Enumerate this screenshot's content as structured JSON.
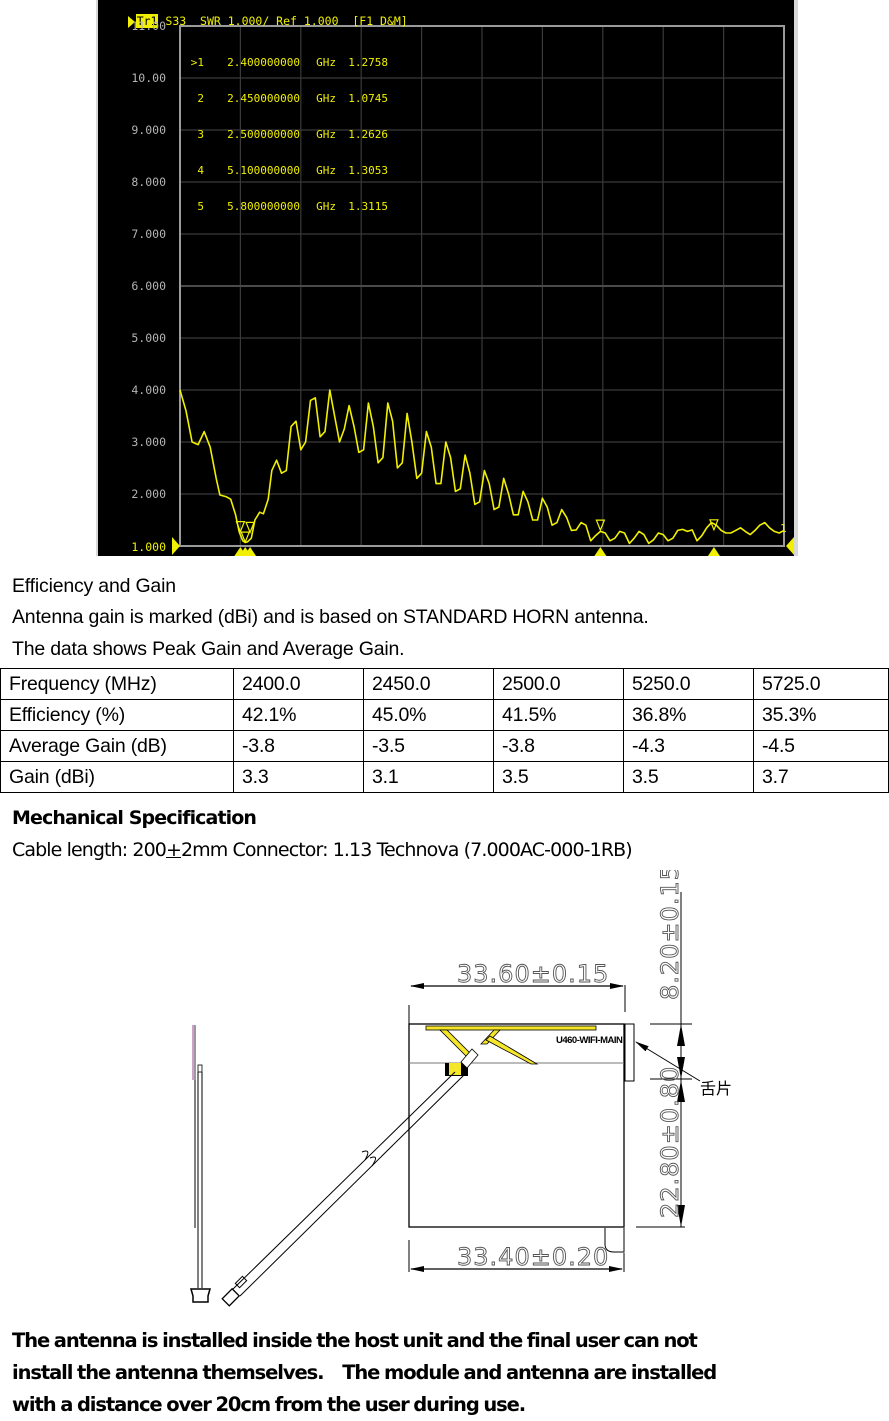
{
  "vna": {
    "trace_label": "Tr1",
    "title_text": " S33  SWR 1.000/ Ref 1.000  [F1 D&M]",
    "y_axis_labels": [
      "11.00",
      "10.00",
      "9.000",
      "8.000",
      "7.000",
      "6.000",
      "5.000",
      "4.000",
      "3.000",
      "2.000",
      "1.000"
    ],
    "markers": [
      {
        "id": ">1",
        "freq": "2.400000000",
        "unit": "GHz",
        "value": "1.2758"
      },
      {
        "id": "2",
        "freq": "2.450000000",
        "unit": "GHz",
        "value": "1.0745"
      },
      {
        "id": "3",
        "freq": "2.500000000",
        "unit": "GHz",
        "value": "1.2626"
      },
      {
        "id": "4",
        "freq": "5.100000000",
        "unit": "GHz",
        "value": "1.3053"
      },
      {
        "id": "5",
        "freq": "5.800000000",
        "unit": "GHz",
        "value": "1.3115"
      }
    ],
    "colors": {
      "trace": "#f0f000",
      "grid": "#3a3a3a",
      "frame": "#9a9a9a",
      "background": "#000000",
      "axis_text": "#b4b4b4"
    }
  },
  "chart_data": {
    "type": "line",
    "title": "S33 SWR 1.000/ Ref 1.000 [F1 D&M]",
    "xlabel": "",
    "ylabel": "SWR",
    "ylim": [
      1.0,
      11.0
    ],
    "yticks": [
      11.0,
      10.0,
      9.0,
      8.0,
      7.0,
      6.0,
      5.0,
      4.0,
      3.0,
      2.0,
      1.0
    ],
    "grid": true,
    "x_divisions": 10,
    "x_note": "x is normalized sweep position (0 = start, 1 = stop); frequency axis not labeled",
    "series": [
      {
        "name": "Tr1 S33 SWR",
        "x": [
          0.0,
          0.01,
          0.02,
          0.03,
          0.04,
          0.05,
          0.06,
          0.066,
          0.076,
          0.084,
          0.092,
          0.098,
          0.104,
          0.108,
          0.112,
          0.118,
          0.124,
          0.132,
          0.138,
          0.146,
          0.152,
          0.16,
          0.168,
          0.176,
          0.184,
          0.192,
          0.2,
          0.208,
          0.216,
          0.224,
          0.232,
          0.24,
          0.248,
          0.256,
          0.264,
          0.272,
          0.28,
          0.288,
          0.296,
          0.304,
          0.312,
          0.32,
          0.328,
          0.336,
          0.344,
          0.352,
          0.36,
          0.368,
          0.376,
          0.384,
          0.392,
          0.4,
          0.408,
          0.416,
          0.424,
          0.432,
          0.44,
          0.448,
          0.456,
          0.464,
          0.472,
          0.48,
          0.488,
          0.496,
          0.504,
          0.512,
          0.52,
          0.528,
          0.536,
          0.544,
          0.552,
          0.56,
          0.568,
          0.576,
          0.584,
          0.592,
          0.6,
          0.608,
          0.616,
          0.624,
          0.632,
          0.64,
          0.648,
          0.656,
          0.664,
          0.672,
          0.68,
          0.688,
          0.696,
          0.704,
          0.712,
          0.72,
          0.728,
          0.736,
          0.744,
          0.752,
          0.76,
          0.768,
          0.776,
          0.784,
          0.792,
          0.8,
          0.808,
          0.816,
          0.824,
          0.832,
          0.84,
          0.848,
          0.856,
          0.864,
          0.872,
          0.88,
          0.888,
          0.896,
          0.904,
          0.912,
          0.92,
          0.928,
          0.936,
          0.944,
          0.952,
          0.96,
          0.968,
          0.976,
          0.984,
          0.992,
          1.0
        ],
        "values": [
          4.0,
          3.6,
          3.0,
          2.95,
          3.2,
          2.9,
          2.3,
          1.98,
          1.95,
          1.9,
          1.6,
          1.27,
          1.1,
          1.07,
          1.08,
          1.15,
          1.5,
          1.65,
          1.62,
          1.9,
          2.45,
          2.65,
          2.4,
          2.45,
          3.3,
          3.4,
          2.85,
          3.0,
          3.8,
          3.85,
          3.1,
          3.2,
          4.0,
          3.5,
          3.0,
          3.25,
          3.7,
          3.3,
          2.8,
          2.85,
          3.75,
          3.3,
          2.6,
          2.7,
          3.75,
          3.4,
          2.5,
          2.6,
          3.55,
          3.0,
          2.3,
          2.4,
          3.2,
          2.9,
          2.2,
          2.2,
          3.0,
          2.7,
          2.05,
          2.1,
          2.75,
          2.4,
          1.8,
          1.85,
          2.45,
          2.2,
          1.7,
          1.75,
          2.3,
          2.0,
          1.6,
          1.6,
          2.05,
          1.85,
          1.5,
          1.5,
          1.92,
          1.75,
          1.4,
          1.45,
          1.7,
          1.55,
          1.3,
          1.31,
          1.45,
          1.4,
          1.1,
          1.2,
          1.28,
          1.25,
          1.1,
          1.15,
          1.28,
          1.25,
          1.05,
          1.15,
          1.28,
          1.22,
          1.05,
          1.12,
          1.25,
          1.22,
          1.1,
          1.15,
          1.3,
          1.32,
          1.28,
          1.31,
          1.1,
          1.2,
          1.35,
          1.45,
          1.4,
          1.3,
          1.25,
          1.25,
          1.3,
          1.35,
          1.28,
          1.22,
          1.3,
          1.4,
          1.45,
          1.35,
          1.28,
          1.25,
          1.3
        ]
      }
    ],
    "markers": [
      {
        "id": "1",
        "x": 0.1,
        "freq_ghz": 2.4,
        "value": 1.2758
      },
      {
        "id": "2",
        "x": 0.108,
        "freq_ghz": 2.45,
        "value": 1.0745
      },
      {
        "id": "3",
        "x": 0.116,
        "freq_ghz": 2.5,
        "value": 1.2626
      },
      {
        "id": "4",
        "x": 0.696,
        "freq_ghz": 5.1,
        "value": 1.3053
      },
      {
        "id": "5",
        "x": 0.884,
        "freq_ghz": 5.8,
        "value": 1.3115
      }
    ]
  },
  "efficiency": {
    "heading": "Efficiency and Gain",
    "line1": "Antenna gain is marked (dBi) and is based on STANDARD HORN antenna.",
    "line2": "The data shows Peak Gain and Average Gain.",
    "table": {
      "rows": [
        [
          "Frequency (MHz)",
          "2400.0",
          "2450.0",
          "2500.0",
          "5250.0",
          "5725.0"
        ],
        [
          "Efficiency (%)",
          "42.1%",
          "45.0%",
          "41.5%",
          "36.8%",
          "35.3%"
        ],
        [
          "Average Gain (dB)",
          "-3.8",
          "-3.5",
          "-3.8",
          "-4.3",
          "-4.5"
        ],
        [
          "Gain (dBi)",
          "3.3",
          "3.1",
          "3.5",
          "3.5",
          "3.7"
        ]
      ]
    }
  },
  "mechanical": {
    "heading": "Mechanical Specification",
    "cable_prefix": "Cable length: 200",
    "cable_pm": "+",
    "cable_suffix": "2mm Connector: 1.13 Technova (7.000AC-000-1RB)"
  },
  "drawing": {
    "dim_top_width": "33.60±0.15",
    "dim_bottom_width": "33.40±0.20",
    "dim_tab_height": "8.20±0.15",
    "dim_body_height": "22.80±0.80",
    "part_label": "U460-WIFI-MAIN",
    "tab_label": "舌片",
    "colors": {
      "radiator": "#f5e62a",
      "line": "#000000",
      "dim_text": "#555555"
    }
  },
  "footer": {
    "line1": "The antenna is installed inside the host unit and the final user can not",
    "line2": "install the antenna themselves.    The module and antenna are installed",
    "line3": "with a distance over 20cm from the user during use."
  }
}
